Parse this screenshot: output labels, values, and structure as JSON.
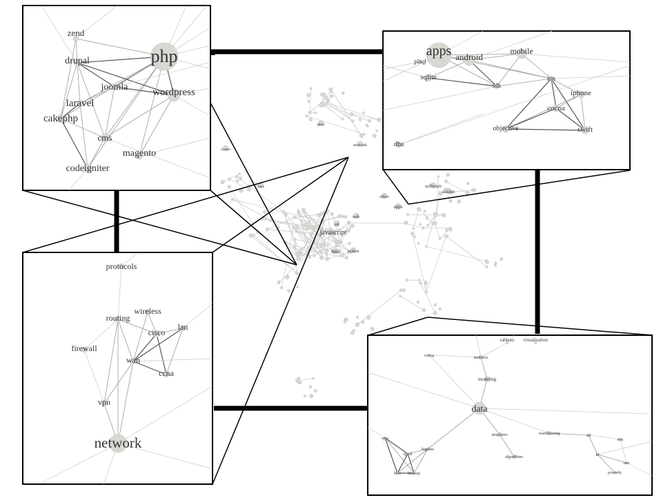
{
  "overview": {
    "labels": [
      "java",
      "network",
      "system",
      "linux",
      "software",
      "design",
      "office",
      "apps",
      "javascript",
      "html",
      "python",
      "web",
      "sql"
    ]
  },
  "panels": {
    "php": {
      "nodes": [
        {
          "id": "php",
          "label": "php"
        },
        {
          "id": "zend",
          "label": "zend"
        },
        {
          "id": "drupal",
          "label": "drupal"
        },
        {
          "id": "joomla",
          "label": "joomla"
        },
        {
          "id": "wordpress",
          "label": "wordpress"
        },
        {
          "id": "laravel",
          "label": "laravel"
        },
        {
          "id": "cakephp",
          "label": "cakephp"
        },
        {
          "id": "cms",
          "label": "cms"
        },
        {
          "id": "magento",
          "label": "magento"
        },
        {
          "id": "codeigniter",
          "label": "codeigniter"
        }
      ]
    },
    "apps": {
      "nodes": [
        {
          "id": "apps",
          "label": "apps"
        },
        {
          "id": "plsql",
          "label": "plsql"
        },
        {
          "id": "android",
          "label": "android"
        },
        {
          "id": "mobile",
          "label": "mobile"
        },
        {
          "id": "sqlite",
          "label": "sqlite"
        },
        {
          "id": "sdk",
          "label": "sdk"
        },
        {
          "id": "ios",
          "label": "ios"
        },
        {
          "id": "iphone",
          "label": "iphone"
        },
        {
          "id": "cocoa",
          "label": "cocoa"
        },
        {
          "id": "objective",
          "label": "objective"
        },
        {
          "id": "swift",
          "label": "swift"
        },
        {
          "id": "dba",
          "label": "dba"
        }
      ]
    },
    "network": {
      "nodes": [
        {
          "id": "protocols",
          "label": "protocols"
        },
        {
          "id": "routing",
          "label": "routing"
        },
        {
          "id": "wireless",
          "label": "wireless"
        },
        {
          "id": "cisco",
          "label": "cisco"
        },
        {
          "id": "lan",
          "label": "lan"
        },
        {
          "id": "firewall",
          "label": "firewall"
        },
        {
          "id": "wan",
          "label": "wan"
        },
        {
          "id": "ccna",
          "label": "ccna"
        },
        {
          "id": "vpn",
          "label": "vpn"
        },
        {
          "id": "network",
          "label": "network"
        }
      ]
    },
    "data": {
      "nodes": [
        {
          "id": "tableau",
          "label": "tableau"
        },
        {
          "id": "visualization",
          "label": "visualization"
        },
        {
          "id": "statistics",
          "label": "statistics"
        },
        {
          "id": "modeling",
          "label": "modeling"
        },
        {
          "id": "data",
          "label": "data"
        },
        {
          "id": "structures",
          "label": "structures"
        },
        {
          "id": "warehousing",
          "label": "warehousing"
        },
        {
          "id": "algorithms",
          "label": "algorithms"
        },
        {
          "id": "spss",
          "label": "spss"
        },
        {
          "id": "bigdata",
          "label": "bigdata"
        },
        {
          "id": "spark",
          "label": "spark"
        },
        {
          "id": "hive",
          "label": "hive"
        },
        {
          "id": "hadoop",
          "label": "hadoop"
        },
        {
          "id": "etl",
          "label": "etl"
        },
        {
          "id": "ssis",
          "label": "ssis"
        },
        {
          "id": "bi",
          "label": "bi"
        },
        {
          "id": "ssrs",
          "label": "ssrs"
        },
        {
          "id": "powerbi",
          "label": "powerbi"
        },
        {
          "id": "mining",
          "label": "mining"
        }
      ]
    }
  }
}
